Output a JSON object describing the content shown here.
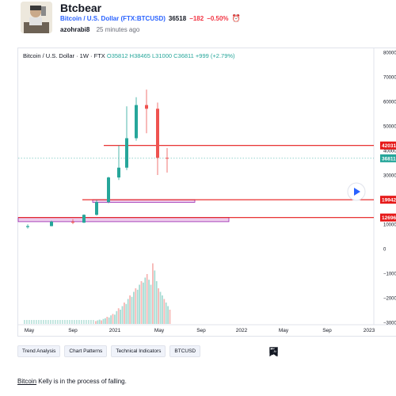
{
  "idea": {
    "title": "Btcbear",
    "symbol_label": "Bitcoin / U.S. Dollar (FTX:BTCUSD)",
    "price": "36518",
    "change": "−182",
    "change_pct": "−0.50%",
    "author": "azohrabi8",
    "time_ago": "25 minutes ago"
  },
  "chart": {
    "legend_name": "Bitcoin / U.S. Dollar · 1W · FTX",
    "legend_ohlc": "O35812 H38465 L31000 C36811 +999 (+2.79%)",
    "price_axis": [
      "80000",
      "70000",
      "60000",
      "50000",
      "40000",
      "30000",
      "20000",
      "10000",
      "0",
      "−10000",
      "−20000",
      "−30000"
    ],
    "time_axis": [
      "May",
      "Sep",
      "2021",
      "May",
      "Sep",
      "2022",
      "May",
      "Sep",
      "2023"
    ],
    "price_labels": [
      {
        "text": "42031",
        "color": "#e61919"
      },
      {
        "text": "36811",
        "color": "#26a69a"
      },
      {
        "text": "19942",
        "color": "#e61919"
      },
      {
        "text": "12696",
        "color": "#e61919"
      }
    ],
    "up_color": "#26a69a",
    "down_color": "#ef5350",
    "line_color": "#e61919",
    "zone_color": "#e8bfe6"
  },
  "chart_data": {
    "type": "candlestick",
    "title": "Bitcoin / U.S. Dollar · 1W · FTX",
    "xlabel": "",
    "ylabel": "",
    "ylim": [
      -30000,
      80000
    ],
    "last_close": 36811,
    "horizontal_levels": [
      42031,
      19942,
      12696
    ],
    "zones": [
      [
        18900,
        19942
      ],
      [
        11000,
        12696
      ]
    ],
    "candles": [
      {
        "t": "2020-05",
        "o": 8800,
        "c": 9200,
        "h": 9900,
        "l": 8200
      },
      {
        "t": "2020-07",
        "o": 9200,
        "c": 11000,
        "h": 11400,
        "l": 9100
      },
      {
        "t": "2020-09",
        "o": 11000,
        "c": 10600,
        "h": 12000,
        "l": 10000
      },
      {
        "t": "2020-10",
        "o": 10600,
        "c": 13800,
        "h": 14000,
        "l": 10500
      },
      {
        "t": "2020-11",
        "o": 13800,
        "c": 19000,
        "h": 19800,
        "l": 13500
      },
      {
        "t": "2020-12",
        "o": 19000,
        "c": 29000,
        "h": 29300,
        "l": 18500
      },
      {
        "t": "2021-01",
        "o": 29000,
        "c": 33000,
        "h": 42000,
        "l": 28000
      },
      {
        "t": "2021-02",
        "o": 33000,
        "c": 45000,
        "h": 58000,
        "l": 32000
      },
      {
        "t": "2021-03",
        "o": 45000,
        "c": 58500,
        "h": 61700,
        "l": 44000
      },
      {
        "t": "2021-04",
        "o": 58500,
        "c": 57000,
        "h": 64800,
        "l": 47000
      },
      {
        "t": "2021-05",
        "o": 57000,
        "c": 37000,
        "h": 59500,
        "l": 30000
      },
      {
        "t": "2021-06",
        "o": 37000,
        "c": 36811,
        "h": 41000,
        "l": 31000
      }
    ]
  },
  "tags": [
    "Trend Analysis",
    "Chart Patterns",
    "Technical Indicators",
    "BTCUSD"
  ],
  "actions": {
    "comments_count": "0"
  },
  "description": {
    "link_word": "Bitcoin",
    "rest": " Kelly is in the process of falling."
  }
}
